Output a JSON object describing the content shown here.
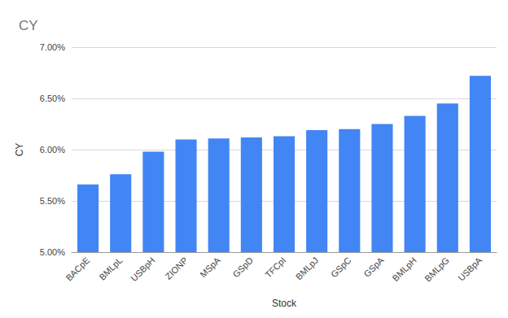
{
  "chart_data": {
    "type": "bar",
    "title": "CY",
    "x_label": "Stock",
    "y_label": "CY",
    "categories": [
      "BACpE",
      "BMLpL",
      "USBpH",
      "ZIONP",
      "MSpA",
      "GSpD",
      "TFCpI",
      "BMLpJ",
      "GSpC",
      "GSpA",
      "BMLpH",
      "BMLpG",
      "USBpA"
    ],
    "values": [
      5.66,
      5.76,
      5.98,
      6.1,
      6.11,
      6.12,
      6.13,
      6.19,
      6.2,
      6.25,
      6.33,
      6.45,
      6.72
    ],
    "color": "#4285f4",
    "ylim": [
      5,
      7
    ],
    "yticks": [
      {
        "value": 5,
        "label": "5.00%"
      },
      {
        "value": 5.5,
        "label": "5.50%"
      },
      {
        "value": 6,
        "label": "6.00%"
      },
      {
        "value": 6.5,
        "label": "6.50%"
      },
      {
        "value": 7,
        "label": "7.00%"
      }
    ],
    "grid": true
  }
}
